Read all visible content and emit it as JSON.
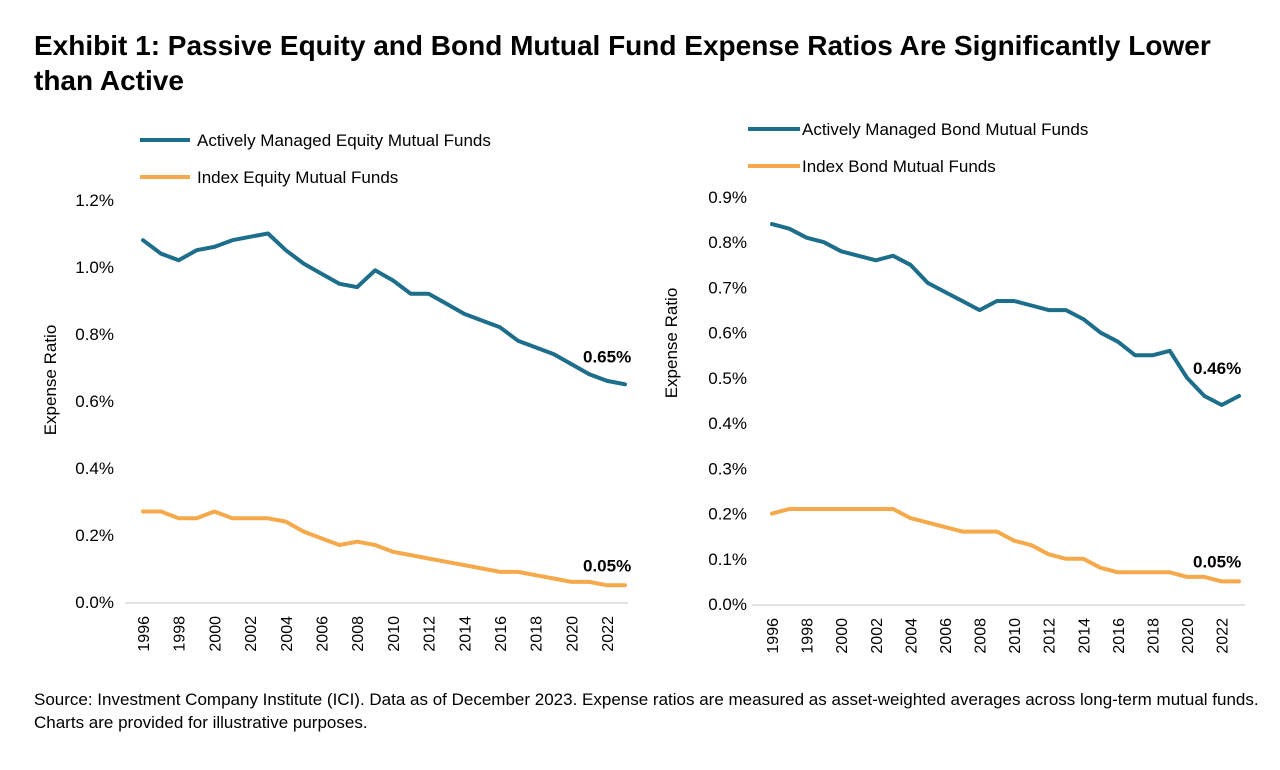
{
  "title": "Exhibit 1: Passive Equity and Bond Mutual Fund Expense Ratios Are Significantly Lower than Active",
  "source": "Source: Investment Company Institute (ICI). Data as of December 2023. Expense ratios are measured as asset-weighted averages across long-term mutual funds. Charts are provided for illustrative purposes.",
  "colors": {
    "active": "#1d6e8a",
    "index": "#f5a94a"
  },
  "chart_data": [
    {
      "type": "line",
      "title": "",
      "ylabel": "Expense Ratio",
      "xlabel": "",
      "ylim": [
        0,
        1.2
      ],
      "y_ticks": [
        "0.0%",
        "0.2%",
        "0.4%",
        "0.6%",
        "0.8%",
        "1.0%",
        "1.2%"
      ],
      "x_ticks": [
        "1996",
        "1998",
        "2000",
        "2002",
        "2004",
        "2006",
        "2008",
        "2010",
        "2012",
        "2014",
        "2016",
        "2018",
        "2020",
        "2022"
      ],
      "legend_position": "top-left",
      "x": [
        1996,
        1997,
        1998,
        1999,
        2000,
        2001,
        2002,
        2003,
        2004,
        2005,
        2006,
        2007,
        2008,
        2009,
        2010,
        2011,
        2012,
        2013,
        2014,
        2015,
        2016,
        2017,
        2018,
        2019,
        2020,
        2021,
        2022,
        2023
      ],
      "series": [
        {
          "name": "Actively Managed Equity Mutual Funds",
          "color": "#1d6e8a",
          "values": [
            1.08,
            1.04,
            1.02,
            1.05,
            1.06,
            1.08,
            1.09,
            1.1,
            1.05,
            1.01,
            0.98,
            0.95,
            0.94,
            0.99,
            0.96,
            0.92,
            0.92,
            0.89,
            0.86,
            0.84,
            0.82,
            0.78,
            0.76,
            0.74,
            0.71,
            0.68,
            0.66,
            0.65
          ],
          "end_label": "0.65%"
        },
        {
          "name": "Index Equity Mutual Funds",
          "color": "#f5a94a",
          "values": [
            0.27,
            0.27,
            0.25,
            0.25,
            0.27,
            0.25,
            0.25,
            0.25,
            0.24,
            0.21,
            0.19,
            0.17,
            0.18,
            0.17,
            0.15,
            0.14,
            0.13,
            0.12,
            0.11,
            0.1,
            0.09,
            0.09,
            0.08,
            0.07,
            0.06,
            0.06,
            0.05,
            0.05
          ],
          "end_label": "0.05%"
        }
      ]
    },
    {
      "type": "line",
      "title": "",
      "ylabel": "Expense Ratio",
      "xlabel": "",
      "ylim": [
        0,
        0.9
      ],
      "y_ticks": [
        "0.0%",
        "0.1%",
        "0.2%",
        "0.3%",
        "0.4%",
        "0.5%",
        "0.6%",
        "0.7%",
        "0.8%",
        "0.9%"
      ],
      "x_ticks": [
        "1996",
        "1998",
        "2000",
        "2002",
        "2004",
        "2006",
        "2008",
        "2010",
        "2012",
        "2014",
        "2016",
        "2018",
        "2020",
        "2022"
      ],
      "legend_position": "top-left",
      "x": [
        1996,
        1997,
        1998,
        1999,
        2000,
        2001,
        2002,
        2003,
        2004,
        2005,
        2006,
        2007,
        2008,
        2009,
        2010,
        2011,
        2012,
        2013,
        2014,
        2015,
        2016,
        2017,
        2018,
        2019,
        2020,
        2021,
        2022,
        2023
      ],
      "series": [
        {
          "name": "Actively Managed Bond Mutual Funds",
          "color": "#1d6e8a",
          "values": [
            0.84,
            0.83,
            0.81,
            0.8,
            0.78,
            0.77,
            0.76,
            0.77,
            0.75,
            0.71,
            0.69,
            0.67,
            0.65,
            0.67,
            0.67,
            0.66,
            0.65,
            0.65,
            0.63,
            0.6,
            0.58,
            0.55,
            0.55,
            0.56,
            0.5,
            0.46,
            0.44,
            0.46
          ],
          "end_label": "0.46%"
        },
        {
          "name": "Index Bond Mutual Funds",
          "color": "#f5a94a",
          "values": [
            0.2,
            0.21,
            0.21,
            0.21,
            0.21,
            0.21,
            0.21,
            0.21,
            0.19,
            0.18,
            0.17,
            0.16,
            0.16,
            0.16,
            0.14,
            0.13,
            0.11,
            0.1,
            0.1,
            0.08,
            0.07,
            0.07,
            0.07,
            0.07,
            0.06,
            0.06,
            0.05,
            0.05
          ],
          "end_label": "0.05%"
        }
      ]
    }
  ]
}
